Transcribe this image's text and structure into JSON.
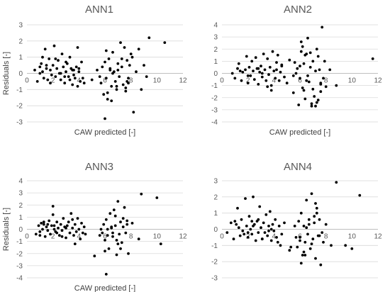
{
  "chart_data": [
    {
      "type": "scatter",
      "title": "ANN1",
      "xlabel": "CAW predicted [-]",
      "ylabel": "Residuals [-]",
      "xlim": [
        0,
        12
      ],
      "ylim": [
        -3,
        3
      ],
      "xticks": [
        "0",
        "2",
        "4",
        "6",
        "8",
        "10",
        "12"
      ],
      "yticks": [
        "3",
        "2",
        "1",
        "0",
        "-1",
        "-2",
        "-3"
      ],
      "grid": "horizontal",
      "x": [
        0.6,
        0.8,
        1.0,
        1.1,
        1.2,
        1.3,
        1.4,
        1.5,
        1.6,
        1.7,
        1.8,
        1.9,
        2.0,
        2.1,
        2.2,
        2.3,
        2.4,
        2.5,
        2.6,
        2.7,
        2.8,
        2.9,
        3.0,
        3.1,
        3.2,
        3.3,
        3.4,
        3.5,
        3.6,
        3.7,
        3.8,
        3.9,
        4.0,
        4.1,
        4.2,
        4.3,
        1.2,
        1.8,
        2.6,
        3.0,
        3.6,
        4.0,
        1.5,
        2.2,
        3.3,
        3.9,
        4.4,
        1.0,
        2.9,
        3.5,
        5.7,
        5.8,
        5.9,
        6.0,
        6.1,
        6.2,
        6.3,
        6.4,
        6.5,
        6.6,
        6.7,
        6.8,
        6.9,
        7.0,
        7.1,
        7.2,
        7.3,
        7.4,
        7.5,
        7.6,
        7.7,
        7.8,
        7.9,
        8.0,
        8.2,
        8.4,
        8.6,
        8.8,
        9.0,
        9.2,
        9.4,
        10.6,
        6.0,
        6.4,
        6.9,
        7.3,
        7.7,
        8.1,
        5.6,
        6.2,
        7.0,
        7.6,
        5.0,
        6.6,
        6.1,
        7.8,
        6.5,
        5.4
      ],
      "y": [
        0.2,
        -0.5,
        0.4,
        0.6,
        0.1,
        -0.3,
        1.5,
        0.3,
        -0.4,
        0.9,
        0.2,
        -0.1,
        0.5,
        1.7,
        -0.2,
        0.3,
        0.8,
        0.0,
        -0.4,
        1.2,
        0.4,
        -0.6,
        0.1,
        0.6,
        -0.2,
        1.0,
        0.3,
        -0.7,
        0.2,
        -0.3,
        0.4,
        -0.8,
        0.1,
        -0.5,
        0.7,
        -0.3,
        1.0,
        -0.6,
        0.0,
        0.7,
        -0.1,
        0.3,
        0.5,
        0.9,
        -0.4,
        1.6,
        -0.6,
        0.0,
        -0.2,
        0.2,
        -0.6,
        0.4,
        -1.3,
        0.7,
        -0.3,
        -1.6,
        0.9,
        0.2,
        -0.8,
        1.3,
        0.1,
        -0.5,
        -1.0,
        0.6,
        -0.2,
        1.9,
        0.4,
        -0.7,
        1.6,
        -1.1,
        0.8,
        -0.3,
        0.5,
        1.2,
        -2.4,
        0.1,
        1.5,
        -1.0,
        0.5,
        -0.2,
        2.2,
        1.9,
        -2.8,
        0.3,
        -0.8,
        0.9,
        -0.5,
        1.0,
        -0.2,
        -1.2,
        0.2,
        -0.9,
        -0.4,
        0.0,
        1.4,
        -0.6,
        -1.7,
        0.2
      ]
    },
    {
      "type": "scatter",
      "title": "ANN2",
      "xlabel": "CAW predicted [-]",
      "ylabel": "",
      "xlim": [
        0,
        12
      ],
      "ylim": [
        -4,
        4
      ],
      "xticks": [
        "0",
        "2",
        "4",
        "6",
        "8",
        "10",
        "12"
      ],
      "yticks": [
        "4",
        "3",
        "2",
        "1",
        "0",
        "-1",
        "-2",
        "-3",
        "-4"
      ],
      "grid": "horizontal",
      "x": [
        0.8,
        1.0,
        1.2,
        1.4,
        1.5,
        1.6,
        1.8,
        2.0,
        2.1,
        2.2,
        2.3,
        2.4,
        2.5,
        2.6,
        2.7,
        2.8,
        2.9,
        3.0,
        3.1,
        3.2,
        3.3,
        3.4,
        3.5,
        3.6,
        3.7,
        3.8,
        3.9,
        4.0,
        4.1,
        4.2,
        4.3,
        4.4,
        4.5,
        4.6,
        4.8,
        5.0,
        5.2,
        1.3,
        2.0,
        2.8,
        3.5,
        4.2,
        1.9,
        3.1,
        3.8,
        4.6,
        5.5,
        5.8,
        5.9,
        6.0,
        6.1,
        6.2,
        6.3,
        6.4,
        6.5,
        6.6,
        6.7,
        6.8,
        6.9,
        7.0,
        7.1,
        7.2,
        7.3,
        7.4,
        7.5,
        7.6,
        7.7,
        7.8,
        7.9,
        8.0,
        8.3,
        8.8,
        11.6,
        6.2,
        6.5,
        6.8,
        7.2,
        7.6,
        6.0,
        6.4,
        7.0,
        7.4,
        5.5,
        6.9,
        5.6,
        6.6,
        7.3,
        7.6,
        6.1,
        6.3,
        5.7
      ],
      "y": [
        0.0,
        -0.4,
        0.4,
        0.2,
        -0.6,
        0.1,
        0.3,
        -0.8,
        0.5,
        -0.2,
        1.0,
        0.2,
        -0.5,
        1.3,
        0.4,
        -0.9,
        0.1,
        0.6,
        -0.3,
        1.6,
        0.3,
        -0.6,
        1.2,
        -0.1,
        0.5,
        -1.0,
        1.8,
        0.2,
        -0.4,
        0.9,
        1.5,
        -0.6,
        0.1,
        0.7,
        -0.3,
        -0.8,
        1.1,
        0.8,
        -0.2,
        0.4,
        -1.1,
        0.3,
        1.4,
        0.0,
        -1.4,
        0.6,
        -1.6,
        0.4,
        -2.6,
        -0.4,
        2.6,
        -1.2,
        0.8,
        -2.1,
        1.6,
        2.9,
        -0.7,
        0.5,
        -2.7,
        1.0,
        -1.9,
        0.2,
        -2.4,
        1.4,
        0.3,
        -1.5,
        3.8,
        -0.4,
        1.0,
        -1.1,
        0.3,
        -1.0,
        1.2,
        2.2,
        -0.6,
        1.7,
        -2.7,
        -0.9,
        0.6,
        1.5,
        -1.3,
        -2.2,
        -0.2,
        -2.5,
        0.9,
        -0.2,
        2.0,
        -0.8,
        1.8,
        -1.4,
        0.0
      ]
    },
    {
      "type": "scatter",
      "title": "ANN3",
      "xlabel": "CAW predicted [-]",
      "ylabel": "Residuals [-]",
      "xlim": [
        0,
        12
      ],
      "ylim": [
        -4,
        4
      ],
      "xticks": [
        "0",
        "2",
        "4",
        "6",
        "8",
        "10",
        "12"
      ],
      "yticks": [
        "4",
        "3",
        "2",
        "1",
        "0",
        "-1",
        "-2",
        "-3",
        "-4"
      ],
      "grid": "horizontal",
      "x": [
        0.7,
        0.9,
        1.0,
        1.1,
        1.2,
        1.3,
        1.4,
        1.5,
        1.6,
        1.7,
        1.8,
        1.9,
        2.0,
        2.1,
        2.2,
        2.3,
        2.4,
        2.5,
        2.6,
        2.7,
        2.8,
        2.9,
        3.0,
        3.1,
        3.2,
        3.3,
        3.4,
        3.5,
        3.6,
        3.7,
        3.8,
        3.9,
        4.0,
        4.1,
        4.2,
        4.3,
        4.4,
        1.0,
        1.6,
        2.3,
        3.0,
        3.7,
        1.3,
        2.0,
        2.7,
        3.5,
        4.5,
        2.1,
        5.8,
        5.9,
        6.0,
        6.1,
        6.2,
        6.3,
        6.4,
        6.5,
        6.6,
        6.7,
        6.8,
        6.9,
        7.0,
        7.1,
        7.2,
        7.3,
        7.4,
        7.5,
        7.6,
        7.7,
        7.8,
        8.1,
        8.6,
        8.8,
        10.0,
        10.3,
        6.1,
        6.5,
        6.9,
        7.4,
        5.6,
        6.2,
        7.0,
        7.7,
        5.2,
        6.6,
        5.7,
        6.8,
        7.2,
        6.0
      ],
      "y": [
        -0.4,
        0.3,
        -0.2,
        0.5,
        0.0,
        0.4,
        -0.6,
        0.2,
        -0.1,
        0.7,
        -0.4,
        0.3,
        1.2,
        0.0,
        -0.2,
        0.6,
        0.1,
        -0.5,
        0.4,
        -0.1,
        0.9,
        0.2,
        -0.7,
        0.3,
        0.6,
        -0.3,
        1.3,
        0.1,
        -0.5,
        0.4,
        -0.2,
        0.9,
        0.0,
        -0.8,
        0.5,
        -0.3,
        0.2,
        -0.5,
        0.4,
        -0.3,
        0.1,
        -1.2,
        0.6,
        1.9,
        -0.6,
        0.8,
        -0.4,
        0.3,
        -0.3,
        0.4,
        -1.8,
        0.8,
        -0.5,
        -1.6,
        1.3,
        0.1,
        -0.6,
        1.6,
        0.3,
        -0.9,
        2.3,
        -0.4,
        0.6,
        -1.1,
        0.2,
        1.8,
        -0.3,
        0.7,
        -2.0,
        0.5,
        -0.8,
        2.9,
        2.6,
        -1.2,
        -3.7,
        0.2,
        -2.1,
        0.9,
        -0.5,
        0.0,
        -1.2,
        0.4,
        -2.2,
        -0.3,
        0.0,
        1.1,
        -1.6,
        -0.9
      ]
    },
    {
      "type": "scatter",
      "title": "ANN4",
      "xlabel": "",
      "ylabel": "",
      "xlim": [
        0,
        12
      ],
      "ylim": [
        -3,
        3
      ],
      "xticks": [
        "0",
        "2",
        "4",
        "6",
        "8",
        "10",
        "12"
      ],
      "yticks": [
        "3",
        "2",
        "1",
        "0",
        "-1",
        "-2",
        "-3"
      ],
      "grid": "horizontal",
      "x": [
        0.4,
        0.7,
        0.9,
        1.1,
        1.3,
        1.4,
        1.5,
        1.6,
        1.8,
        1.9,
        2.0,
        2.1,
        2.2,
        2.3,
        2.4,
        2.5,
        2.6,
        2.7,
        2.8,
        2.9,
        3.0,
        3.1,
        3.2,
        3.3,
        3.4,
        3.5,
        3.6,
        3.7,
        3.8,
        3.9,
        4.0,
        4.1,
        4.2,
        4.3,
        4.4,
        4.6,
        4.8,
        1.0,
        1.7,
        2.4,
        3.1,
        3.8,
        1.2,
        2.0,
        2.8,
        3.6,
        4.5,
        2.3,
        5.2,
        5.6,
        5.8,
        5.9,
        6.0,
        6.1,
        6.2,
        6.3,
        6.4,
        6.5,
        6.6,
        6.7,
        6.8,
        6.9,
        7.0,
        7.1,
        7.2,
        7.3,
        7.4,
        7.5,
        7.6,
        7.8,
        8.0,
        8.4,
        8.8,
        9.5,
        10.0,
        10.6,
        6.1,
        6.5,
        6.9,
        7.3,
        5.7,
        6.3,
        7.1,
        7.7,
        5.3,
        6.7,
        6.0,
        7.5,
        7.2,
        6.4
      ],
      "y": [
        -0.2,
        0.4,
        -0.6,
        0.3,
        0.1,
        -0.4,
        0.6,
        -0.1,
        1.9,
        0.2,
        -0.5,
        0.8,
        0.0,
        -0.3,
        2.0,
        0.3,
        -0.7,
        0.5,
        -0.2,
        1.4,
        0.1,
        -0.6,
        0.4,
        -0.2,
        0.9,
        -0.4,
        0.2,
        1.1,
        -0.7,
        0.3,
        -0.1,
        0.6,
        -0.5,
        -0.8,
        0.2,
        -0.3,
        0.4,
        0.5,
        -0.3,
        0.2,
        -0.6,
        0.0,
        1.3,
        -0.2,
        0.6,
        -0.1,
        -1.0,
        0.5,
        -1.3,
        0.2,
        -1.1,
        0.5,
        -0.5,
        1.0,
        -1.6,
        0.2,
        -0.8,
        1.8,
        -0.3,
        0.6,
        -1.2,
        2.2,
        -0.6,
        0.4,
        -1.8,
        1.0,
        -0.4,
        0.6,
        -2.2,
        -0.8,
        0.3,
        -1.0,
        2.9,
        -1.0,
        -1.2,
        2.1,
        -2.1,
        0.1,
        -0.9,
        1.3,
        -0.5,
        -1.4,
        0.8,
        -0.2,
        -1.1,
        0.3,
        -0.7,
        -0.4,
        1.6,
        -1.6
      ]
    }
  ]
}
